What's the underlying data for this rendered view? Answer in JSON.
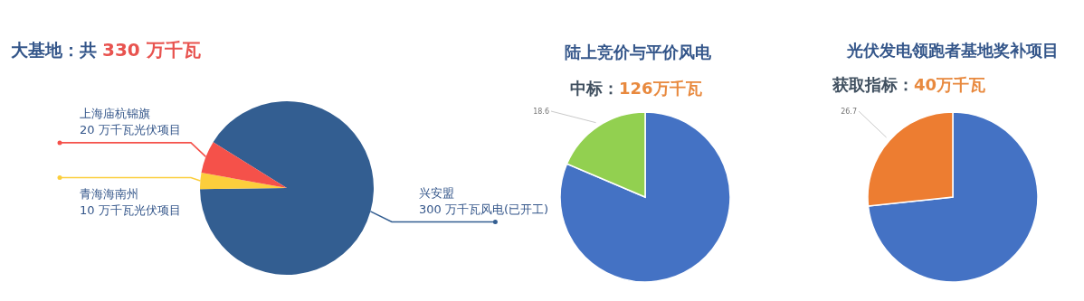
{
  "chart_data": [
    {
      "type": "pie",
      "title": "大基地：共",
      "annotations": [
        "330 万千瓦"
      ],
      "categories": [
        "兴安盟",
        "青海海南州",
        "上海庙杭锦旗"
      ],
      "values": [
        300,
        10,
        20
      ],
      "colors": [
        "#335e91",
        "#fcce3c",
        "#f5514a"
      ],
      "value_labels": [
        "300 万千瓦风电(已开工)",
        "10 万千瓦光伏项目",
        "20 万千瓦光伏项目"
      ]
    },
    {
      "type": "pie",
      "title": "陆上竞价与平价风电",
      "subtitle": "中标：",
      "annotations": [
        "126万千瓦"
      ],
      "categories": [
        null,
        null
      ],
      "values": [
        81.4,
        18.6
      ],
      "colors": [
        "#4472c4",
        "#92d050"
      ],
      "value_labels": [
        null,
        "18.6"
      ]
    },
    {
      "type": "pie",
      "title": "光伏发电领跑者基地奖补项目",
      "subtitle": "获取指标：",
      "annotations": [
        "40万千瓦"
      ],
      "categories": [
        null,
        null
      ],
      "values": [
        73.3,
        26.7
      ],
      "colors": [
        "#4472c4",
        "#ed7d31"
      ],
      "value_labels": [
        null,
        "26.7"
      ]
    }
  ]
}
